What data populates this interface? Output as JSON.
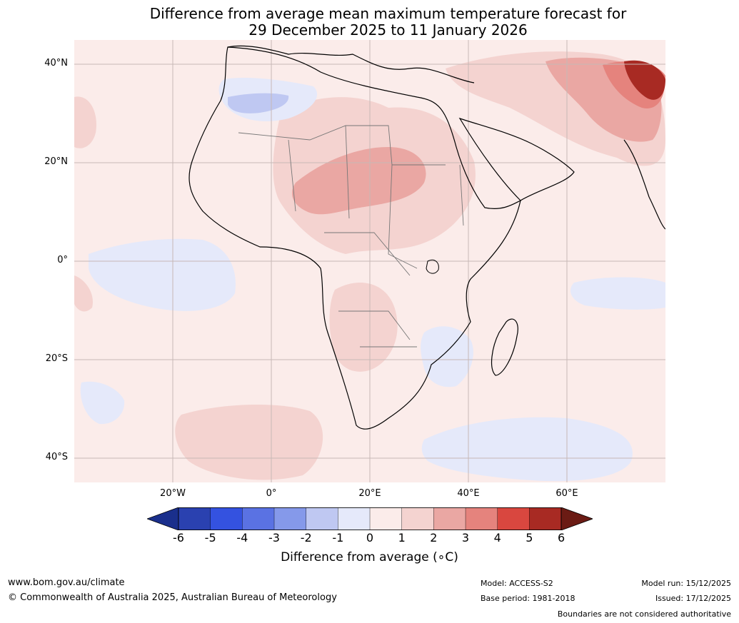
{
  "title": {
    "line1": "Difference from average mean maximum temperature forecast for",
    "line2": "29 December 2025 to 11 January 2026"
  },
  "map": {
    "region": "Africa",
    "lat_labels": [
      "40°N",
      "20°N",
      "0°",
      "20°S",
      "40°S"
    ],
    "lon_labels": [
      "20°W",
      "0°",
      "20°E",
      "40°E",
      "60°E"
    ]
  },
  "colorbar": {
    "ticks": [
      "-6",
      "-5",
      "-4",
      "-3",
      "-2",
      "-1",
      "0",
      "1",
      "2",
      "3",
      "4",
      "5",
      "6"
    ],
    "colors": [
      "#1a2f8c",
      "#2a41b0",
      "#3452e0",
      "#5a72e3",
      "#8599ea",
      "#bfc8f2",
      "#e5e9fa",
      "#fbecea",
      "#f4d3d0",
      "#eaa7a3",
      "#e5837d",
      "#d9473f",
      "#a82a23",
      "#6b1b14"
    ],
    "label": "Difference from average (∘C)"
  },
  "footer": {
    "website": "www.bom.gov.au/climate",
    "copyright": "© Commonwealth of Australia 2025, Australian Bureau of Meteorology",
    "model": "Model: ACCESS-S2",
    "base_period": "Base period: 1981-2018",
    "model_run": "Model run: 15/12/2025",
    "issued": "Issued: 17/12/2025",
    "disclaimer": "Boundaries are not considered authoritative"
  }
}
